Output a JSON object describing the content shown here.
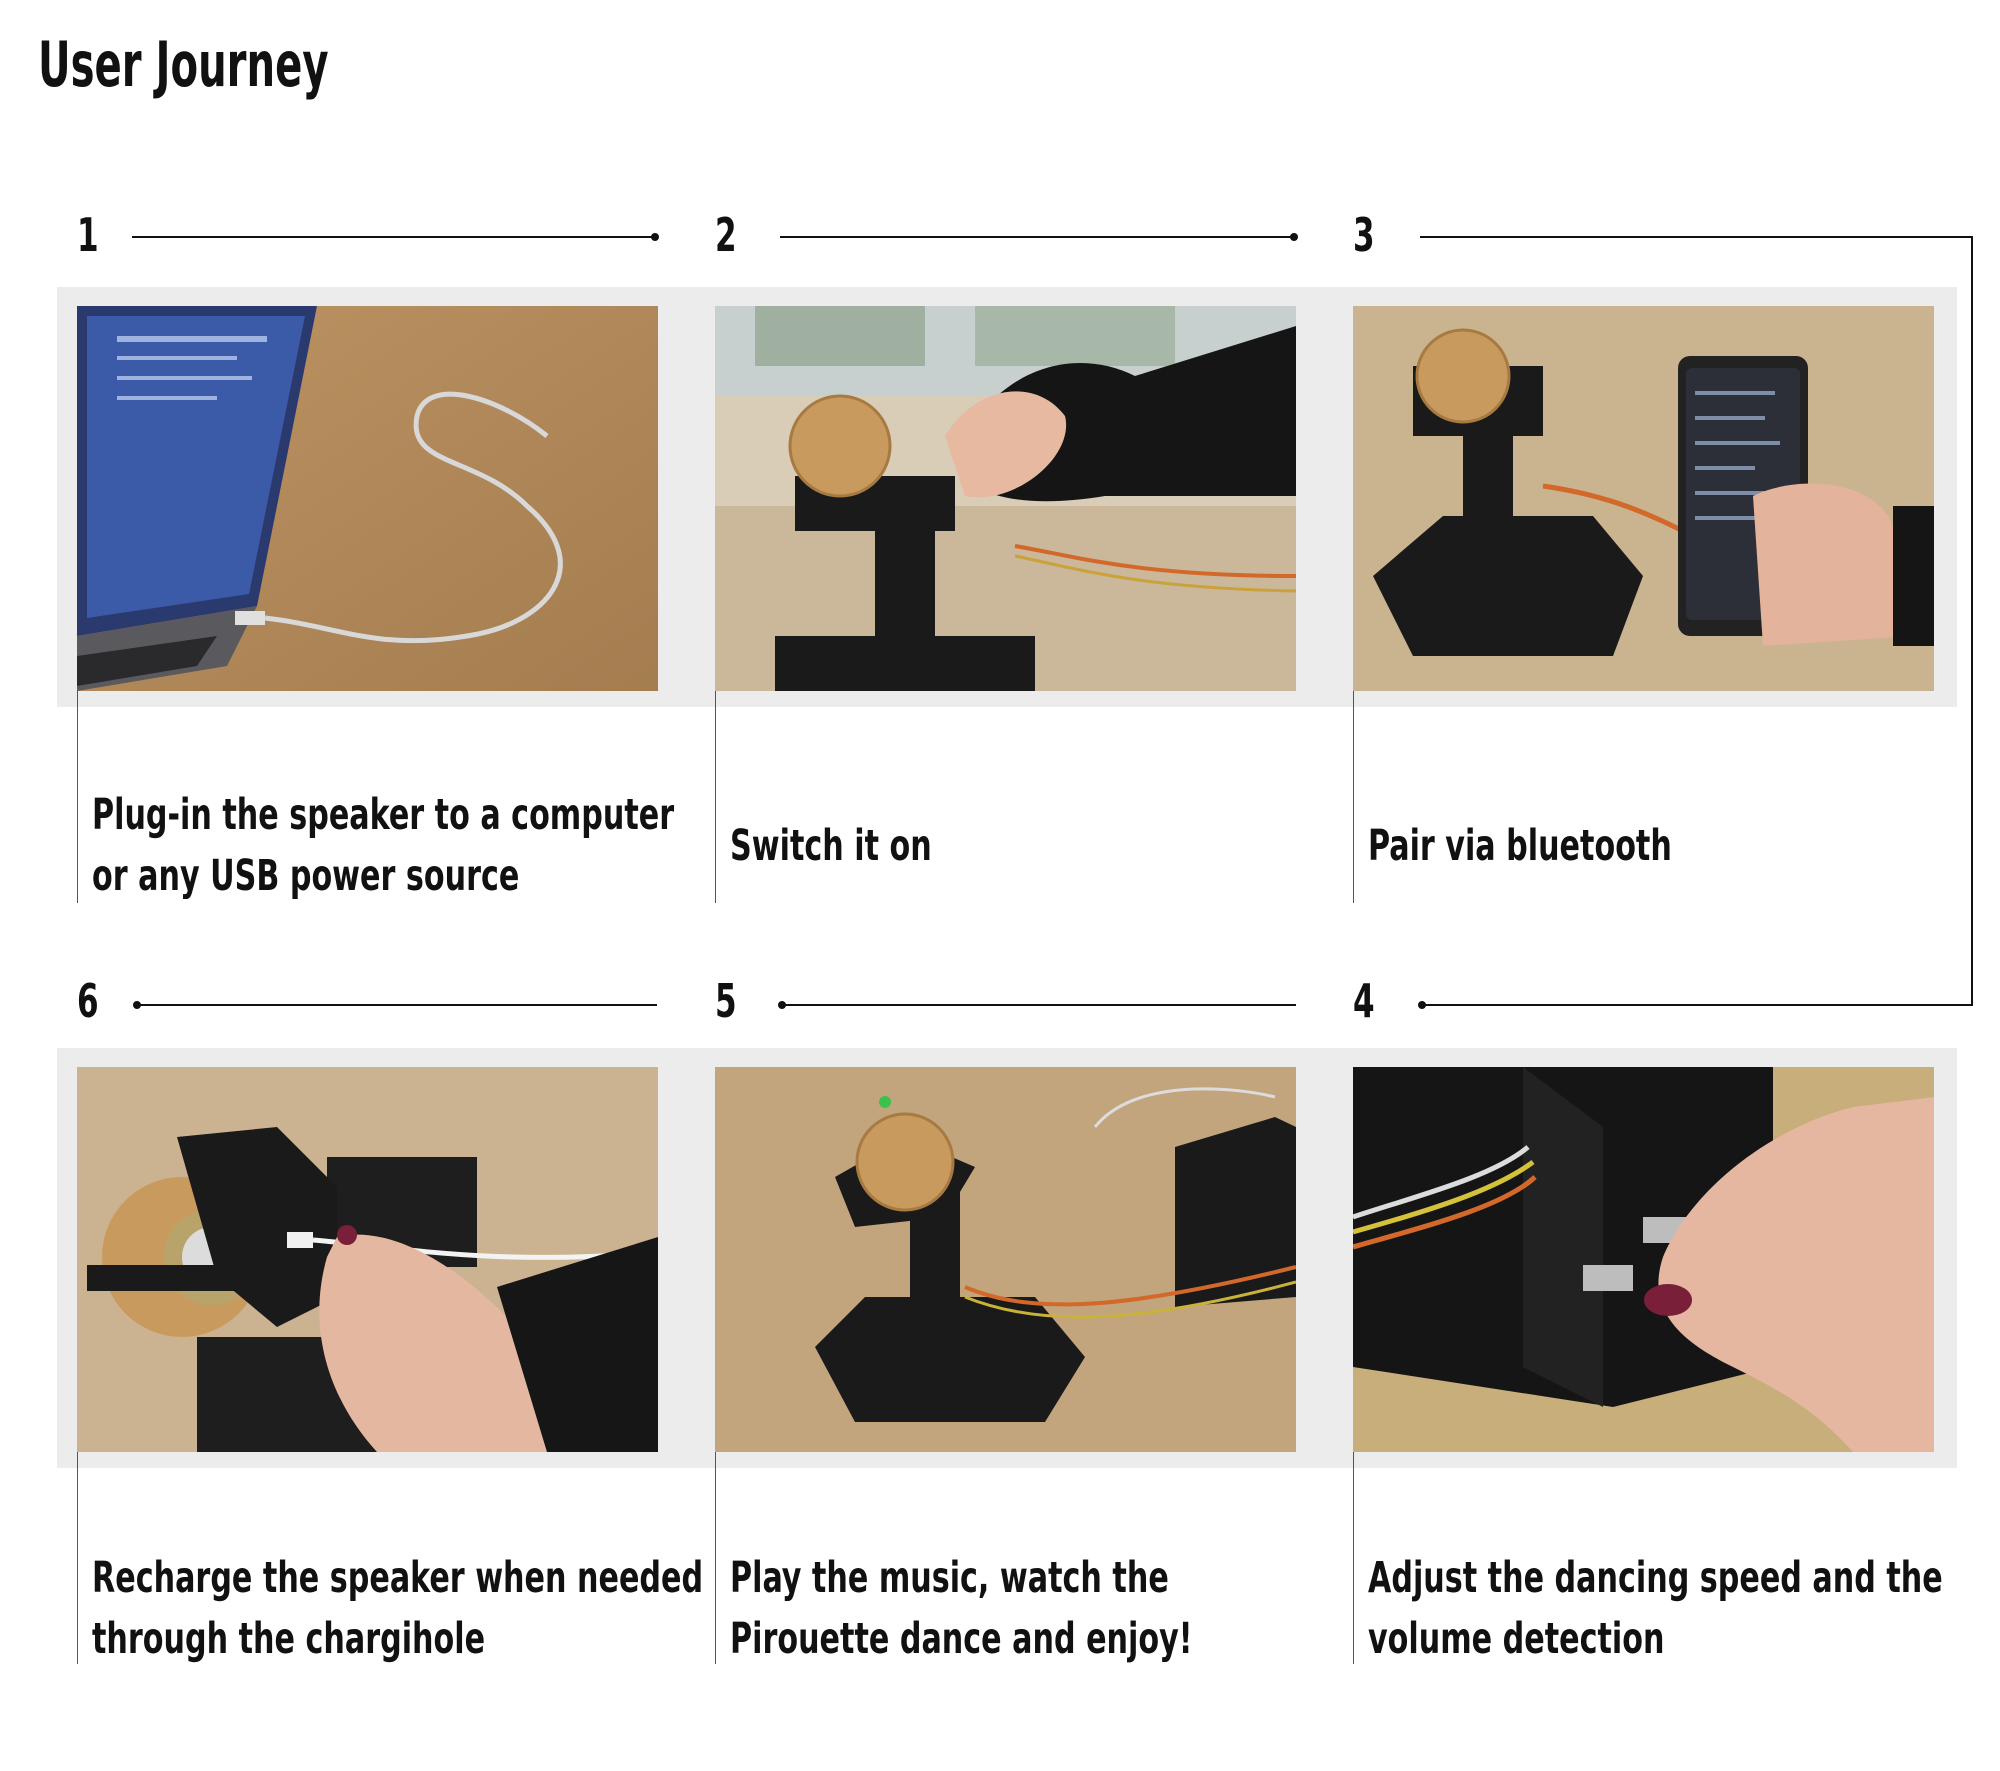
{
  "title": "User Journey",
  "steps": [
    {
      "num": "1",
      "caption_line1": "Plug-in the speaker to a computer",
      "caption_line2": "or any USB power source"
    },
    {
      "num": "2",
      "caption_line1": "Switch it on",
      "caption_line2": ""
    },
    {
      "num": "3",
      "caption_line1": "Pair via bluetooth",
      "caption_line2": ""
    },
    {
      "num": "4",
      "caption_line1": "Adjust the dancing speed and the",
      "caption_line2": "volume detection"
    },
    {
      "num": "5",
      "caption_line1": "Play the music, watch the",
      "caption_line2": "Pirouette dance and enjoy!"
    },
    {
      "num": "6",
      "caption_line1": "Recharge the speaker when needed",
      "caption_line2": "through the chargihole"
    }
  ],
  "colors": {
    "band": "#ececec",
    "line": "#111111",
    "cardboard": "#b38a5a",
    "device": "#1a1a1a",
    "wood": "#c99a5e"
  }
}
